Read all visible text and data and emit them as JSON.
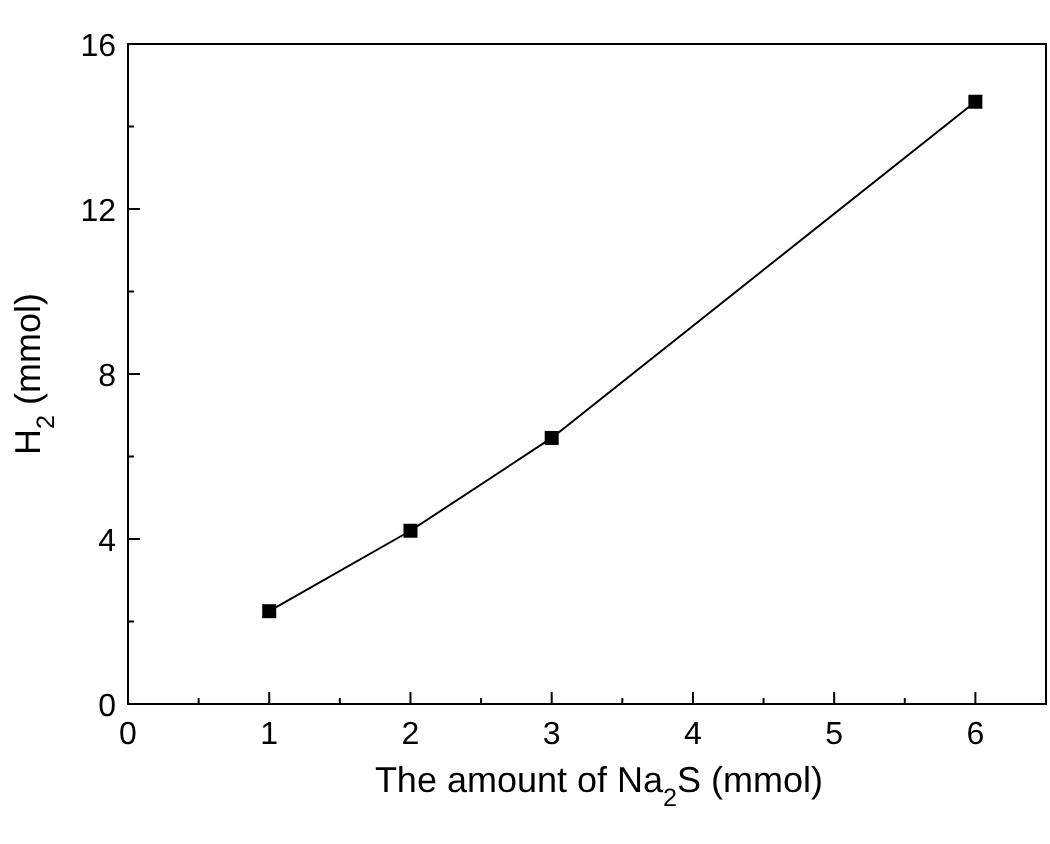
{
  "chart_data": {
    "type": "line",
    "xlabel": "The amount of Na$_{2}$S (mmol)",
    "ylabel": "H$_{2}$ (mmol)",
    "x": [
      1,
      2,
      3,
      6
    ],
    "series": [
      {
        "color": "#000000",
        "values": [
          2.25,
          4.2,
          6.45,
          14.6
        ]
      }
    ],
    "marker": "square",
    "line_style": "solid",
    "grid": false,
    "xlim": [
      0,
      6.5
    ],
    "ylim": [
      0,
      16
    ],
    "xticks": [
      0,
      {
        "value": 0.5,
        "label": null
      },
      1,
      {
        "value": 1.5,
        "label": null
      },
      2,
      {
        "value": 2.5,
        "label": null
      },
      3,
      {
        "value": 3.5,
        "label": null
      },
      4,
      {
        "value": 4.5,
        "label": null
      },
      5,
      {
        "value": 5.5,
        "label": null
      },
      6
    ],
    "yticks": [
      0,
      {
        "value": 2,
        "label": null
      },
      4,
      {
        "value": 6,
        "label": null
      },
      8,
      {
        "value": 10,
        "label": null
      },
      12,
      {
        "value": 14,
        "label": null
      },
      16
    ]
  }
}
